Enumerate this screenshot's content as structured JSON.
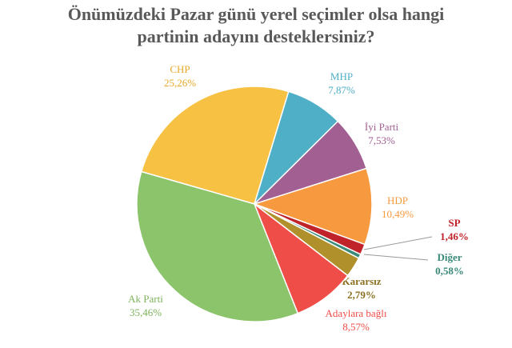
{
  "chart_data": {
    "type": "pie",
    "title": [
      "Önümüzdeki Pazar günü yerel seçimler olsa hangi",
      "partinin adayını desteklersiniz?"
    ],
    "categories": [
      "CHP",
      "MHP",
      "İyi Parti",
      "HDP",
      "SP",
      "Diğer",
      "Kararsız",
      "Adaylara bağlı",
      "Ak Parti"
    ],
    "values": [
      25.26,
      7.87,
      7.53,
      10.49,
      1.46,
      0.58,
      2.79,
      8.57,
      35.46
    ],
    "value_labels": [
      "25,26%",
      "7,87%",
      "7,53%",
      "10,49%",
      "1,46%",
      "0,58%",
      "2,79%",
      "8,57%",
      "35,46%"
    ],
    "colors": [
      "#f7c244",
      "#4eafc6",
      "#a25f92",
      "#f79a3f",
      "#c0242a",
      "#3a8a7a",
      "#b0902a",
      "#ef4d48",
      "#8cc46b"
    ]
  }
}
